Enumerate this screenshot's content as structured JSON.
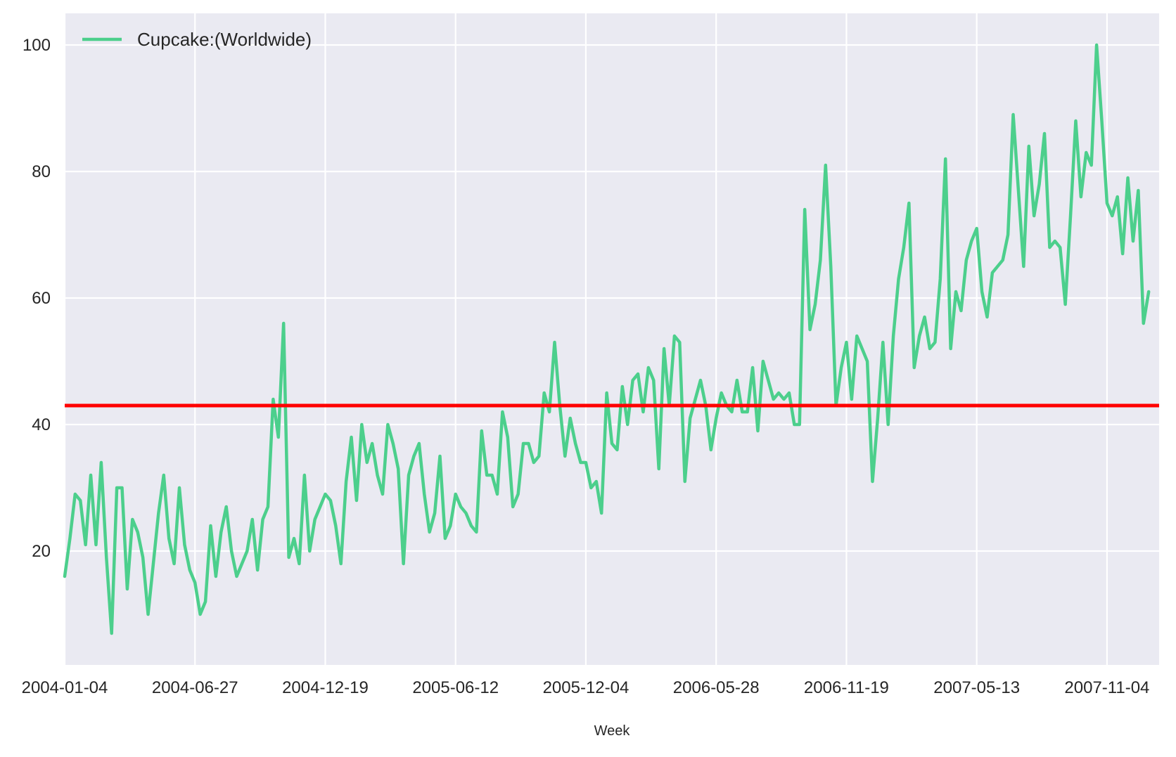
{
  "chart_data": {
    "type": "line",
    "title": "",
    "xlabel": "Week",
    "ylabel": "",
    "ylim": [
      2,
      105
    ],
    "xlim": [
      "2004-01-04",
      "2008-01-13"
    ],
    "grid": true,
    "background": "#eaeaf2",
    "legend": {
      "position": "top-left"
    },
    "x_tick_labels": [
      "2004-01-04",
      "2004-06-27",
      "2004-12-19",
      "2005-06-12",
      "2005-12-04",
      "2006-05-28",
      "2006-11-19",
      "2007-05-13",
      "2007-11-04"
    ],
    "y_ticks": [
      20,
      40,
      60,
      80,
      100
    ],
    "y_tick_labels": [
      "20",
      "40",
      "60",
      "80",
      "100"
    ],
    "reference_line": {
      "y": 43,
      "color": "#ff0000"
    },
    "series": [
      {
        "name": "Cupcake:(Worldwide)",
        "color": "#4ccf8c",
        "start": "2004-01-04",
        "interval_days": 7,
        "values": [
          16,
          22,
          29,
          28,
          21,
          32,
          21,
          34,
          19,
          7,
          30,
          30,
          14,
          25,
          23,
          19,
          10,
          18,
          26,
          32,
          22,
          18,
          30,
          21,
          17,
          15,
          10,
          12,
          24,
          16,
          23,
          27,
          20,
          16,
          18,
          20,
          25,
          17,
          25,
          27,
          44,
          38,
          56,
          19,
          22,
          18,
          32,
          20,
          25,
          27,
          29,
          28,
          24,
          18,
          31,
          38,
          28,
          40,
          34,
          37,
          32,
          29,
          40,
          37,
          33,
          18,
          32,
          35,
          37,
          29,
          23,
          26,
          35,
          22,
          24,
          29,
          27,
          26,
          24,
          23,
          39,
          32,
          32,
          29,
          42,
          38,
          27,
          29,
          37,
          37,
          34,
          35,
          45,
          42,
          53,
          43,
          35,
          41,
          37,
          34,
          34,
          30,
          31,
          26,
          45,
          37,
          36,
          46,
          40,
          47,
          48,
          42,
          49,
          47,
          33,
          52,
          43,
          54,
          53,
          31,
          41,
          44,
          47,
          43,
          36,
          41,
          45,
          43,
          42,
          47,
          42,
          42,
          49,
          39,
          50,
          47,
          44,
          45,
          44,
          45,
          40,
          40,
          74,
          55,
          59,
          66,
          81,
          65,
          43,
          49,
          53,
          44,
          54,
          52,
          50,
          31,
          41,
          53,
          40,
          54,
          63,
          68,
          75,
          49,
          54,
          57,
          52,
          53,
          63,
          82,
          52,
          61,
          58,
          66,
          69,
          71,
          61,
          57,
          64,
          65,
          66,
          70,
          89,
          77,
          65,
          84,
          73,
          78,
          86,
          68,
          69,
          68,
          59,
          73,
          88,
          76,
          83,
          81,
          100,
          88,
          75,
          73,
          76,
          67,
          79,
          69,
          77,
          56,
          61
        ]
      }
    ]
  }
}
